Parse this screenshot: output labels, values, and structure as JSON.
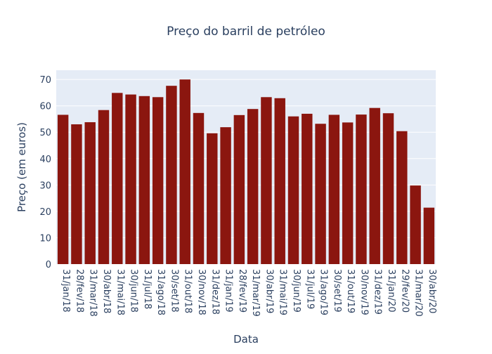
{
  "colors": {
    "bar": "#8b160f",
    "plot_background": "#e5ecf6",
    "gridline": "#ffffff",
    "text": "#2a3f5f",
    "page_background": "#ffffff"
  },
  "chart_data": {
    "type": "bar",
    "title": "Preço do barril de petróleo",
    "xlabel": "Data",
    "ylabel": "Preço (em euros)",
    "ylim": [
      0,
      73.5
    ],
    "yticks": [
      0,
      10,
      20,
      30,
      40,
      50,
      60,
      70
    ],
    "grid": true,
    "legend": "none",
    "categories": [
      "31/jan/18",
      "28/fev/18",
      "31/mar/18",
      "30/abr/18",
      "31/mai/18",
      "30/jun/18",
      "31/jul/18",
      "31/ago/18",
      "30/set/18",
      "31/out/18",
      "30/nov/18",
      "31/dez/18",
      "31/jan/19",
      "28/fev/19",
      "31/mar/19",
      "30/abr/19",
      "31/mai/19",
      "30/jun/19",
      "31/jul/19",
      "31/ago/19",
      "30/set/19",
      "31/out/19",
      "30/nov/19",
      "31/dez/19",
      "31/jan/20",
      "29/fev/20",
      "31/mar/20",
      "30/abr/20"
    ],
    "values": [
      56.6,
      53.0,
      53.8,
      58.4,
      64.9,
      64.3,
      63.7,
      63.3,
      67.6,
      70.0,
      57.3,
      49.6,
      51.9,
      56.5,
      58.8,
      63.3,
      62.9,
      56.0,
      57.0,
      53.2,
      56.6,
      53.7,
      56.7,
      59.2,
      57.2,
      50.4,
      29.8,
      21.4
    ]
  }
}
